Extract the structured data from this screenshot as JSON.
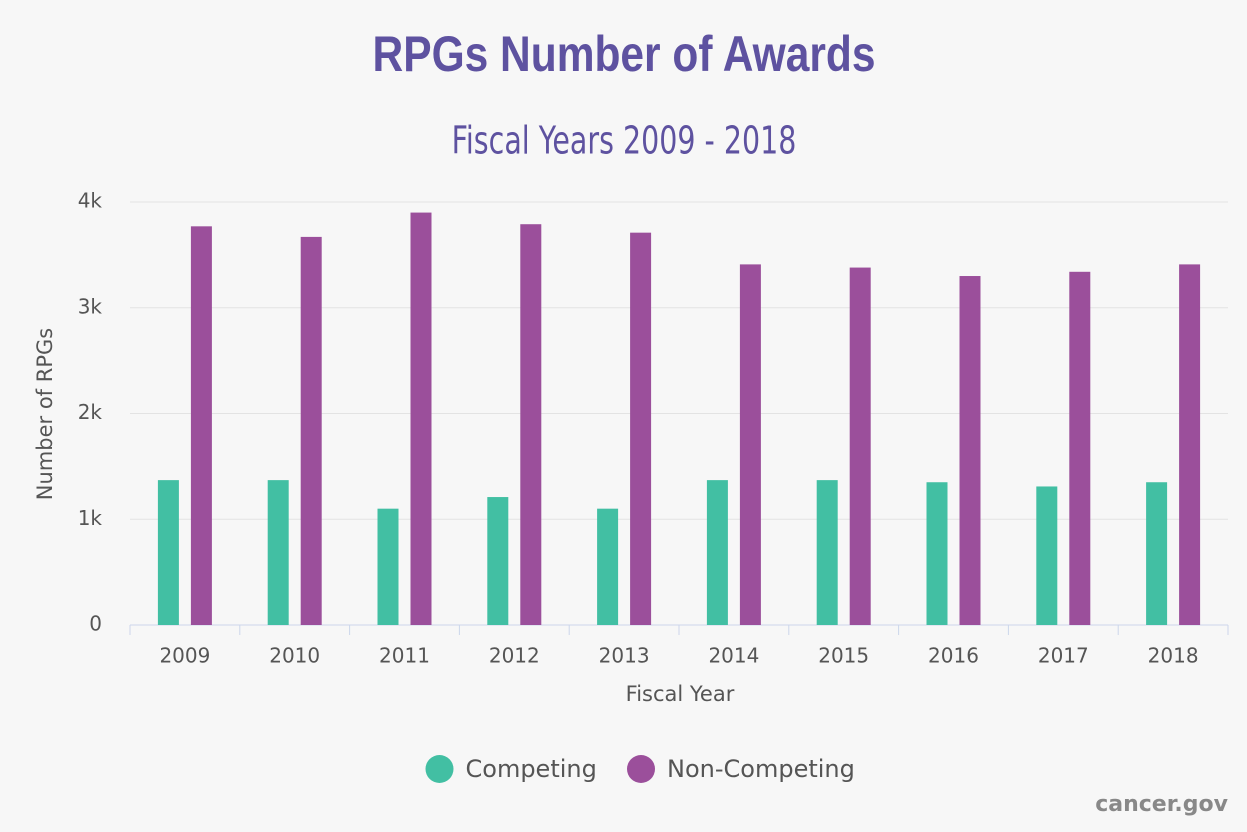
{
  "chart_data": {
    "type": "bar",
    "title": "RPGs Number of Awards",
    "subtitle": "Fiscal Years 2009 - 2018",
    "x_label": "Fiscal Year",
    "y_label": "Number of RPGs",
    "source": "cancer.gov",
    "categories": [
      "2009",
      "2010",
      "2011",
      "2012",
      "2013",
      "2014",
      "2015",
      "2016",
      "2017",
      "2018"
    ],
    "series": [
      {
        "name": "Competing",
        "color": "#42bfa3",
        "values": [
          1370,
          1370,
          1100,
          1210,
          1100,
          1370,
          1370,
          1350,
          1310,
          1350
        ]
      },
      {
        "name": "Non-Competing",
        "color": "#9b4f9b",
        "values": [
          3770,
          3670,
          3900,
          3790,
          3710,
          3410,
          3380,
          3300,
          3340,
          3410
        ]
      }
    ],
    "ylim": [
      0,
      4000
    ],
    "yticks": [
      0,
      {
        "value": 1000,
        "label": "1k"
      },
      {
        "value": 2000,
        "label": "2k"
      },
      {
        "value": 3000,
        "label": "3k"
      },
      {
        "value": 4000,
        "label": "4k"
      }
    ],
    "grid": true,
    "legend": "bottom"
  }
}
